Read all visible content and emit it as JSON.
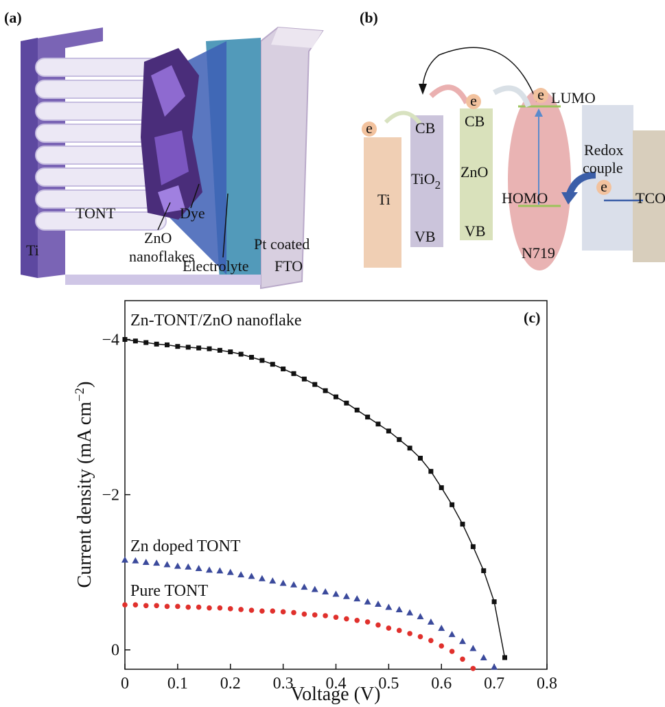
{
  "panel_a": {
    "label": "(a)",
    "labels": [
      "Ti",
      "TONT",
      "ZnO",
      "nanoflakes",
      "Dye",
      "Electrolyte",
      "Pt coated",
      "FTO"
    ]
  },
  "panel_b": {
    "label": "(b)",
    "ti": "Ti",
    "tio2": {
      "base": "TiO",
      "sub": "2"
    },
    "tio2_cb": "CB",
    "tio2_vb": "VB",
    "zno": "ZnO",
    "zno_cb": "CB",
    "zno_vb": "VB",
    "lumo": "LUMO",
    "homo": "HOMO",
    "dye": "N719",
    "redox": [
      "Redox",
      "couple"
    ],
    "tco": "TCO",
    "electrons": [
      "e",
      "e",
      "e",
      "e"
    ]
  },
  "chart_data": {
    "type": "scatter",
    "label": "(c)",
    "x_label": "Voltage (V)",
    "y_label": {
      "text": "Current density (mA cm",
      "sup": "−2",
      "end": ")"
    },
    "xlim": [
      0,
      0.8
    ],
    "xticks": [
      0,
      0.1,
      0.2,
      0.3,
      0.4,
      0.5,
      0.6,
      0.7,
      0.8
    ],
    "ylim": [
      0.25,
      -4.5
    ],
    "yticks": [
      {
        "value": 0,
        "label": "0"
      },
      {
        "value": -2,
        "label": "−2"
      },
      {
        "value": -4,
        "label": "−4"
      }
    ],
    "grid": false,
    "series": [
      {
        "name": "Zn-TONT/ZnO nanoflake",
        "color": "#111111",
        "marker": "square",
        "fit_line": true,
        "x": [
          0,
          0.02,
          0.04,
          0.06,
          0.08,
          0.1,
          0.12,
          0.14,
          0.16,
          0.18,
          0.2,
          0.22,
          0.24,
          0.26,
          0.28,
          0.3,
          0.32,
          0.34,
          0.36,
          0.38,
          0.4,
          0.42,
          0.44,
          0.46,
          0.48,
          0.5,
          0.52,
          0.54,
          0.56,
          0.58,
          0.6,
          0.62,
          0.64,
          0.66,
          0.68,
          0.7,
          0.72
        ],
        "values": [
          -4.0,
          -3.98,
          -3.96,
          -3.94,
          -3.93,
          -3.91,
          -3.9,
          -3.89,
          -3.88,
          -3.86,
          -3.84,
          -3.81,
          -3.77,
          -3.73,
          -3.68,
          -3.62,
          -3.56,
          -3.49,
          -3.42,
          -3.34,
          -3.26,
          -3.18,
          -3.09,
          -3.0,
          -2.91,
          -2.82,
          -2.71,
          -2.6,
          -2.47,
          -2.3,
          -2.09,
          -1.87,
          -1.62,
          -1.33,
          -1.02,
          -0.62,
          0.1
        ]
      },
      {
        "name": "Zn doped TONT",
        "color": "#3b4a9c",
        "marker": "triangle",
        "fit_line": false,
        "x": [
          0,
          0.02,
          0.04,
          0.06,
          0.08,
          0.1,
          0.12,
          0.14,
          0.16,
          0.18,
          0.2,
          0.22,
          0.24,
          0.26,
          0.28,
          0.3,
          0.32,
          0.34,
          0.36,
          0.38,
          0.4,
          0.42,
          0.44,
          0.46,
          0.48,
          0.5,
          0.52,
          0.54,
          0.56,
          0.58,
          0.6,
          0.62,
          0.64,
          0.66,
          0.68,
          0.7
        ],
        "values": [
          -1.16,
          -1.15,
          -1.13,
          -1.12,
          -1.1,
          -1.08,
          -1.07,
          -1.05,
          -1.03,
          -1.02,
          -1.0,
          -0.97,
          -0.95,
          -0.92,
          -0.89,
          -0.86,
          -0.84,
          -0.81,
          -0.78,
          -0.75,
          -0.72,
          -0.69,
          -0.66,
          -0.62,
          -0.59,
          -0.55,
          -0.52,
          -0.48,
          -0.43,
          -0.36,
          -0.28,
          -0.2,
          -0.11,
          -0.02,
          0.1,
          0.22
        ]
      },
      {
        "name": "Pure TONT",
        "color": "#e0302c",
        "marker": "circle",
        "fit_line": false,
        "x": [
          0,
          0.02,
          0.04,
          0.06,
          0.08,
          0.1,
          0.12,
          0.14,
          0.16,
          0.18,
          0.2,
          0.22,
          0.24,
          0.26,
          0.28,
          0.3,
          0.32,
          0.34,
          0.36,
          0.38,
          0.4,
          0.42,
          0.44,
          0.46,
          0.48,
          0.5,
          0.52,
          0.54,
          0.56,
          0.58,
          0.6,
          0.62,
          0.64,
          0.66
        ],
        "values": [
          -0.58,
          -0.58,
          -0.57,
          -0.57,
          -0.56,
          -0.56,
          -0.55,
          -0.55,
          -0.54,
          -0.54,
          -0.53,
          -0.52,
          -0.51,
          -0.5,
          -0.5,
          -0.49,
          -0.48,
          -0.46,
          -0.45,
          -0.44,
          -0.42,
          -0.4,
          -0.38,
          -0.36,
          -0.32,
          -0.28,
          -0.25,
          -0.21,
          -0.17,
          -0.12,
          -0.05,
          0.02,
          0.12,
          0.24
        ]
      }
    ]
  }
}
